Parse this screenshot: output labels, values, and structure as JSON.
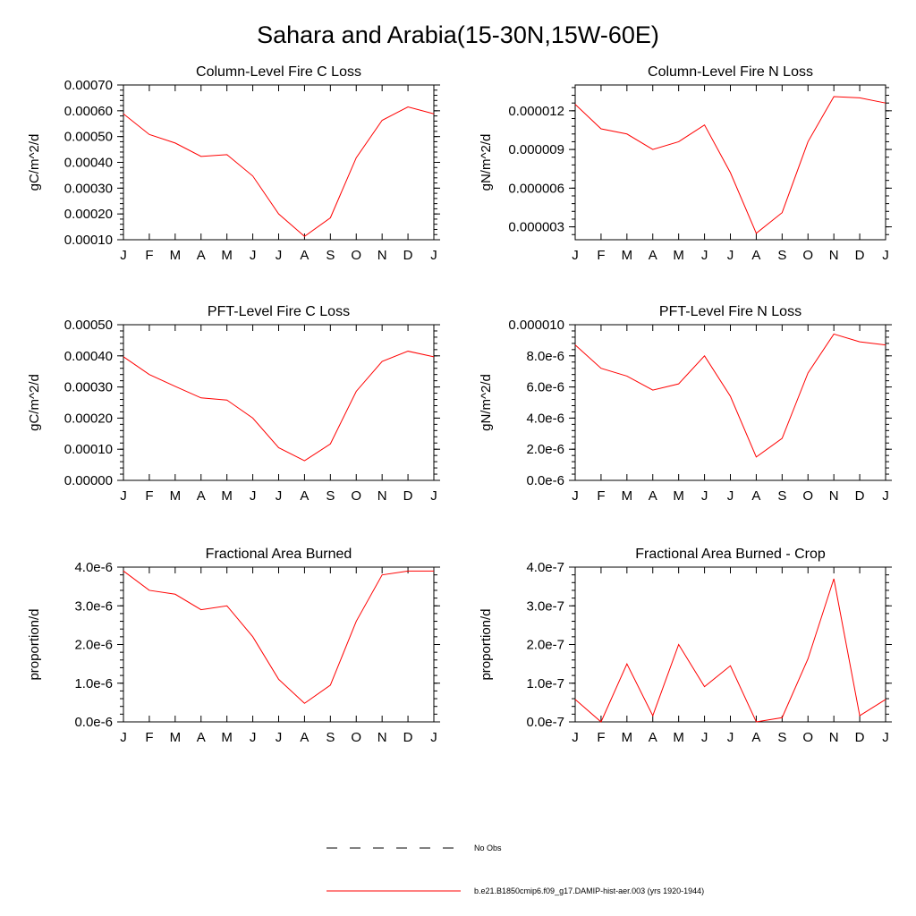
{
  "title": "Sahara and Arabia(15-30N,15W-60E)",
  "colors": {
    "model": "#ff0000",
    "obs": "#000000",
    "axis": "#000000"
  },
  "legend": {
    "obs_label": "No Obs",
    "model_label": "b.e21.B1850cmip6.f09_g17.DAMIP-hist-aer.003 (yrs 1920-1944)",
    "placement": "bottom-center"
  },
  "chart_data": [
    {
      "type": "line",
      "title": "Column-Level Fire C Loss",
      "xlabel": "",
      "ylabel": "gC/m^2/d",
      "categories": [
        "J",
        "F",
        "M",
        "A",
        "M",
        "J",
        "J",
        "A",
        "S",
        "O",
        "N",
        "D",
        "J"
      ],
      "ylim": [
        0.0001,
        0.0007
      ],
      "yticks": [
        0.0001,
        0.0002,
        0.0003,
        0.0004,
        0.0005,
        0.0006,
        0.0007
      ],
      "ytick_labels": [
        "0.00010",
        "0.00020",
        "0.00030",
        "0.00040",
        "0.00050",
        "0.00060",
        "0.00070"
      ],
      "series": [
        {
          "values": [
            0.000588,
            0.000508,
            0.000475,
            0.000423,
            0.00043,
            0.000347,
            0.0002,
            0.000113,
            0.000185,
            0.000418,
            0.000563,
            0.000615,
            0.000588
          ]
        }
      ]
    },
    {
      "type": "line",
      "title": "Column-Level Fire N Loss",
      "xlabel": "",
      "ylabel": "gN/m^2/d",
      "categories": [
        "J",
        "F",
        "M",
        "A",
        "M",
        "J",
        "J",
        "A",
        "S",
        "O",
        "N",
        "D",
        "J"
      ],
      "ylim": [
        2e-06,
        1.4e-05
      ],
      "yticks": [
        3e-06,
        6e-06,
        9e-06,
        1.2e-05
      ],
      "ytick_labels": [
        "0.000003",
        "0.000006",
        "0.000009",
        "0.000012"
      ],
      "series": [
        {
          "values": [
            1.25e-05,
            1.06e-05,
            1.02e-05,
            9e-06,
            9.6e-06,
            1.09e-05,
            7.2e-06,
            2.5e-06,
            4.1e-06,
            9.6e-06,
            1.31e-05,
            1.3e-05,
            1.26e-05
          ]
        }
      ]
    },
    {
      "type": "line",
      "title": "PFT-Level Fire C Loss",
      "xlabel": "",
      "ylabel": "gC/m^2/d",
      "categories": [
        "J",
        "F",
        "M",
        "A",
        "M",
        "J",
        "J",
        "A",
        "S",
        "O",
        "N",
        "D",
        "J"
      ],
      "ylim": [
        0.0,
        0.0005
      ],
      "yticks": [
        0.0,
        0.0001,
        0.0002,
        0.0003,
        0.0004,
        0.0005
      ],
      "ytick_labels": [
        "0.00000",
        "0.00010",
        "0.00020",
        "0.00030",
        "0.00040",
        "0.00050"
      ],
      "series": [
        {
          "values": [
            0.000397,
            0.00034,
            0.000302,
            0.000265,
            0.000258,
            0.0002,
            0.000105,
            6.3e-05,
            0.000117,
            0.000286,
            0.000382,
            0.000415,
            0.000397
          ]
        }
      ]
    },
    {
      "type": "line",
      "title": "PFT-Level Fire N Loss",
      "xlabel": "",
      "ylabel": "gN/m^2/d",
      "categories": [
        "J",
        "F",
        "M",
        "A",
        "M",
        "J",
        "J",
        "A",
        "S",
        "O",
        "N",
        "D",
        "J"
      ],
      "ylim": [
        0.0,
        1e-05
      ],
      "yticks": [
        0.0,
        2e-06,
        4e-06,
        6e-06,
        8e-06,
        1e-05
      ],
      "ytick_labels": [
        "0.0e-6",
        "2.0e-6",
        "4.0e-6",
        "6.0e-6",
        "8.0e-6",
        "0.000010"
      ],
      "series": [
        {
          "values": [
            8.7e-06,
            7.2e-06,
            6.7e-06,
            5.8e-06,
            6.2e-06,
            8e-06,
            5.4e-06,
            1.5e-06,
            2.7e-06,
            6.9e-06,
            9.4e-06,
            8.9e-06,
            8.7e-06
          ]
        }
      ]
    },
    {
      "type": "line",
      "title": "Fractional Area Burned",
      "xlabel": "",
      "ylabel": "proportion/d",
      "categories": [
        "J",
        "F",
        "M",
        "A",
        "M",
        "J",
        "J",
        "A",
        "S",
        "O",
        "N",
        "D",
        "J"
      ],
      "ylim": [
        0.0,
        4e-06
      ],
      "yticks": [
        0.0,
        1e-06,
        2e-06,
        3e-06,
        4e-06
      ],
      "ytick_labels": [
        "0.0e-6",
        "1.0e-6",
        "2.0e-6",
        "3.0e-6",
        "4.0e-6"
      ],
      "series": [
        {
          "values": [
            3.9e-06,
            3.4e-06,
            3.3e-06,
            2.9e-06,
            3e-06,
            2.2e-06,
            1.1e-06,
            4.8e-07,
            9.5e-07,
            2.6e-06,
            3.8e-06,
            3.9e-06,
            3.9e-06
          ]
        }
      ]
    },
    {
      "type": "line",
      "title": "Fractional Area Burned - Crop",
      "xlabel": "",
      "ylabel": "proportion/d",
      "categories": [
        "J",
        "F",
        "M",
        "A",
        "M",
        "J",
        "J",
        "A",
        "S",
        "O",
        "N",
        "D",
        "J"
      ],
      "ylim": [
        0.0,
        4e-07
      ],
      "yticks": [
        0.0,
        1e-07,
        2e-07,
        3e-07,
        4e-07
      ],
      "ytick_labels": [
        "0.0e-7",
        "1.0e-7",
        "2.0e-7",
        "3.0e-7",
        "4.0e-7"
      ],
      "series": [
        {
          "values": [
            5.8e-08,
            0.0,
            1.5e-07,
            1.6e-08,
            2e-07,
            9.1e-08,
            1.45e-07,
            0.0,
            1.1e-08,
            1.63e-07,
            3.7e-07,
            1.6e-08,
            5.8e-08
          ]
        }
      ]
    }
  ]
}
